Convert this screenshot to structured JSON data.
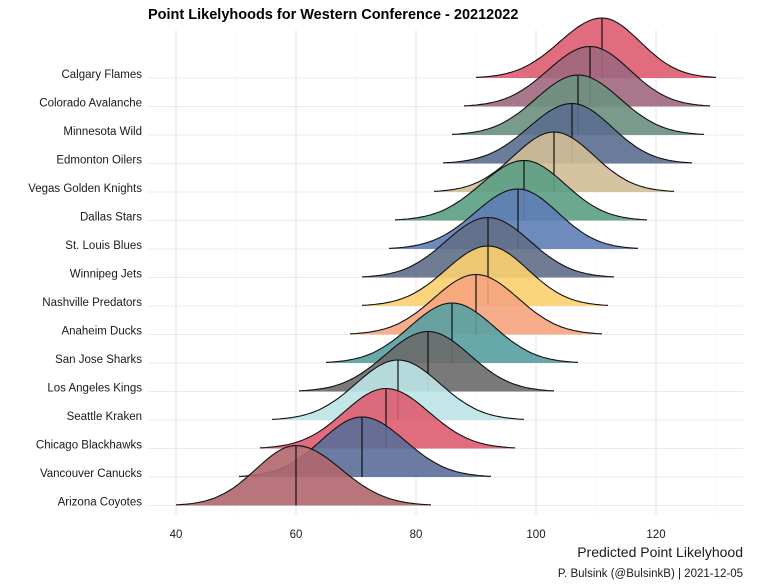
{
  "chart_data": {
    "type": "ridgeline",
    "title": "Point Likelyhoods for Western Conference - 20212022",
    "xlabel": "Predicted Point Likelyhood",
    "ylabel": "",
    "caption": "P. Bulsink (@BulsinkB) | 2021-12-05",
    "xlim": [
      37,
      135
    ],
    "xticks": [
      "40",
      "60",
      "80",
      "100",
      "120"
    ],
    "grid": true,
    "legend": "none",
    "series": [
      {
        "name": "Calgary Flames",
        "median": 111,
        "min": 90,
        "max": 130,
        "color": "#DE5C70"
      },
      {
        "name": "Colorado Avalanche",
        "median": 109,
        "min": 88,
        "max": 129,
        "color": "#A0687E"
      },
      {
        "name": "Minnesota Wild",
        "median": 107,
        "min": 86,
        "max": 128,
        "color": "#6B9080"
      },
      {
        "name": "Edmonton Oilers",
        "median": 106,
        "min": 84.5,
        "max": 126,
        "color": "#5A6E8E"
      },
      {
        "name": "Vegas Golden Knights",
        "median": 103,
        "min": 83,
        "max": 123,
        "color": "#D2BE96"
      },
      {
        "name": "Dallas Stars",
        "median": 98,
        "min": 76.5,
        "max": 118.5,
        "color": "#5A9E84"
      },
      {
        "name": "St. Louis Blues",
        "median": 97,
        "min": 75.5,
        "max": 117,
        "color": "#5F7DB5"
      },
      {
        "name": "Winnipeg Jets",
        "median": 92,
        "min": 71,
        "max": 113,
        "color": "#5F6E88"
      },
      {
        "name": "Nashville Predators",
        "median": 92,
        "min": 71,
        "max": 112,
        "color": "#FBCF6E"
      },
      {
        "name": "Anaheim Ducks",
        "median": 90,
        "min": 69,
        "max": 111,
        "color": "#F6A47E"
      },
      {
        "name": "San Jose Sharks",
        "median": 86,
        "min": 65,
        "max": 107,
        "color": "#56A0A2"
      },
      {
        "name": "Los Angeles Kings",
        "median": 82,
        "min": 60.5,
        "max": 103,
        "color": "#6A6A6A"
      },
      {
        "name": "Seattle Kraken",
        "median": 77,
        "min": 56,
        "max": 98,
        "color": "#BCE4E6"
      },
      {
        "name": "Chicago Blackhawks",
        "median": 75,
        "min": 54,
        "max": 96.5,
        "color": "#DE5C70"
      },
      {
        "name": "Vancouver Canucks",
        "median": 71,
        "min": 50.5,
        "max": 92.5,
        "color": "#5A6E98"
      },
      {
        "name": "Arizona Coyotes",
        "median": 60,
        "min": 40,
        "max": 82.5,
        "color": "#B0666E"
      }
    ]
  }
}
